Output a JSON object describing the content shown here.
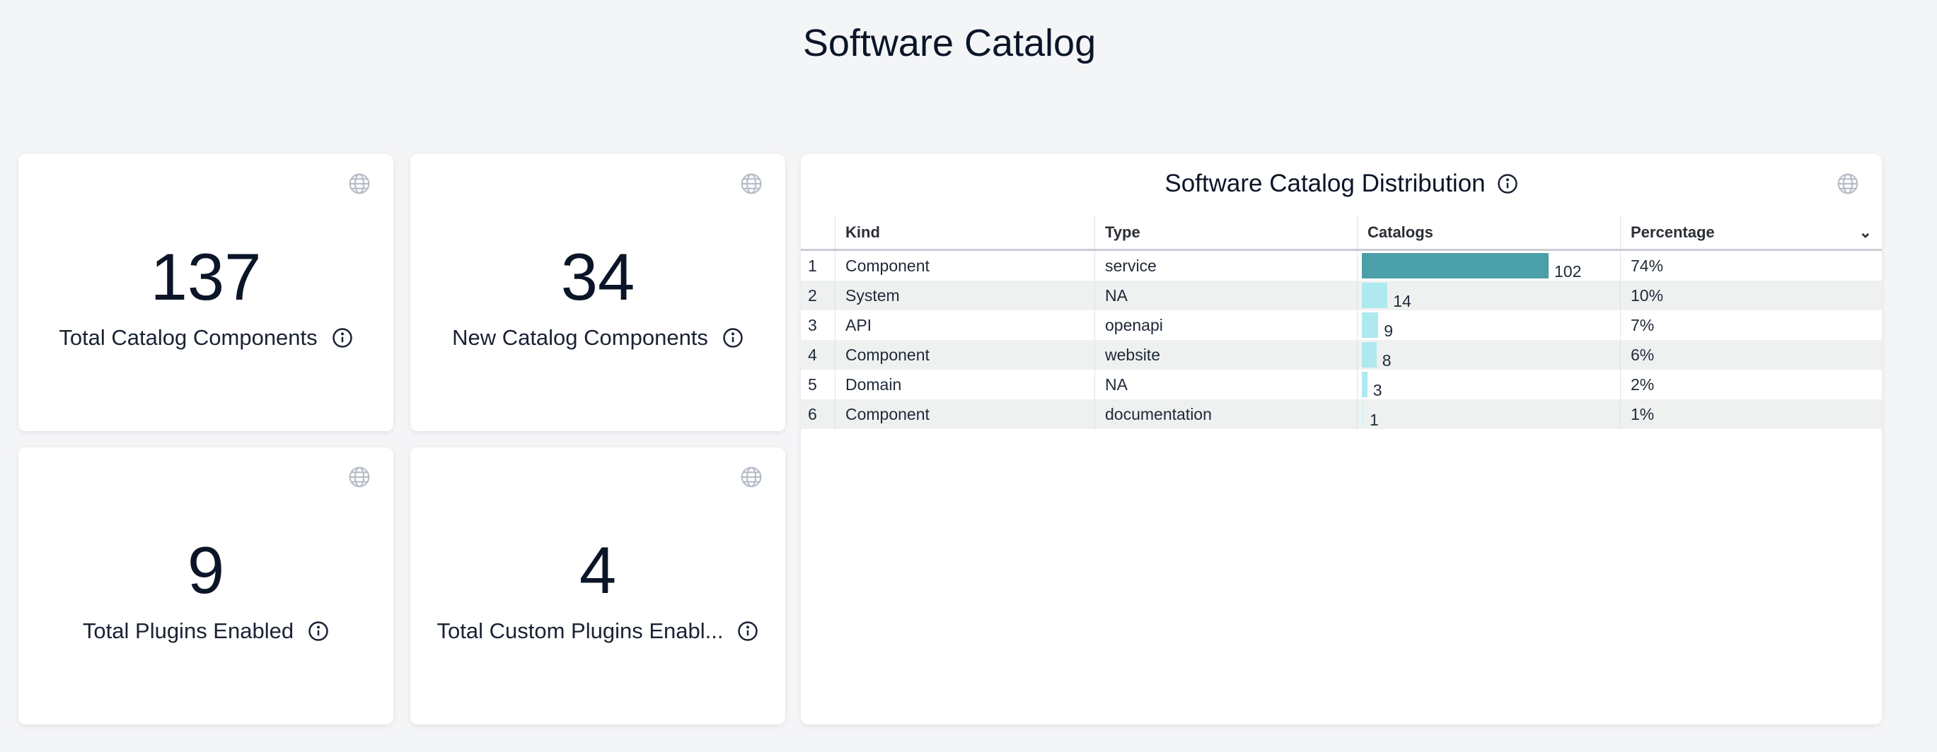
{
  "page": {
    "title": "Software Catalog"
  },
  "kpis": [
    {
      "value": "137",
      "label": "Total Catalog Components"
    },
    {
      "value": "34",
      "label": "New Catalog Components"
    },
    {
      "value": "9",
      "label": "Total Plugins Enabled"
    },
    {
      "value": "4",
      "label": "Total Custom Plugins Enabl..."
    }
  ],
  "distribution": {
    "title": "Software Catalog Distribution",
    "columns": [
      "Kind",
      "Type",
      "Catalogs",
      "Percentage"
    ],
    "sort_icon": "chevron-down-icon",
    "bar_colors": {
      "max": "#4a9fa8",
      "other": "#aee9ef",
      "min": "#d3f5f8"
    },
    "rows": [
      {
        "index": "1",
        "kind": "Component",
        "type": "service",
        "catalogs": 102,
        "percentage": "74%"
      },
      {
        "index": "2",
        "kind": "System",
        "type": "NA",
        "catalogs": 14,
        "percentage": "10%"
      },
      {
        "index": "3",
        "kind": "API",
        "type": "openapi",
        "catalogs": 9,
        "percentage": "7%"
      },
      {
        "index": "4",
        "kind": "Component",
        "type": "website",
        "catalogs": 8,
        "percentage": "6%"
      },
      {
        "index": "5",
        "kind": "Domain",
        "type": "NA",
        "catalogs": 3,
        "percentage": "2%"
      },
      {
        "index": "6",
        "kind": "Component",
        "type": "documentation",
        "catalogs": 1,
        "percentage": "1%"
      }
    ]
  }
}
